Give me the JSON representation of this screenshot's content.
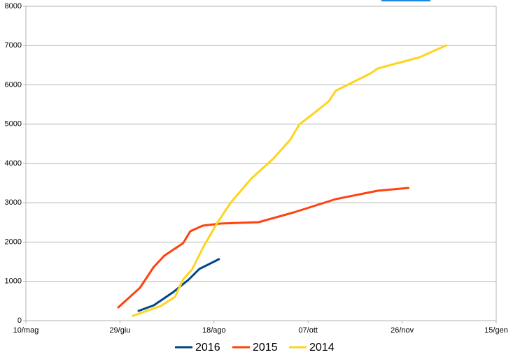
{
  "chart_data": {
    "type": "line",
    "xlim": [
      0,
      250
    ],
    "xticks": [
      {
        "value": 0,
        "label": "10/mag"
      },
      {
        "value": 50,
        "label": "29/giu"
      },
      {
        "value": 100,
        "label": "18/ago"
      },
      {
        "value": 150,
        "label": "07/ott"
      },
      {
        "value": 200,
        "label": "26/nov"
      },
      {
        "value": 250,
        "label": "15/gen"
      }
    ],
    "ylim": [
      0,
      8000
    ],
    "yticks": [
      0,
      1000,
      2000,
      3000,
      4000,
      5000,
      6000,
      7000,
      8000
    ],
    "grid": true,
    "legend": "bottom",
    "series": [
      {
        "name": "2016",
        "color": "#004586",
        "x": [
          59.9,
          68.0,
          78.4,
          83.0,
          86.6,
          92.2,
          102.6
        ],
        "values": [
          249,
          391,
          729,
          907,
          1049,
          1316,
          1564
        ]
      },
      {
        "name": "2015",
        "color": "#ff420e",
        "x": [
          49.1,
          60.6,
          68.0,
          73.6,
          83.6,
          87.4,
          94.0,
          103.3,
          123.8,
          142.4,
          164.7,
          187.0,
          203.3
        ],
        "values": [
          338,
          836,
          1369,
          1653,
          1973,
          2276,
          2418,
          2471,
          2507,
          2756,
          3093,
          3307,
          3378
        ]
      },
      {
        "name": "2014",
        "color": "#ffd320",
        "x": [
          56.9,
          71.7,
          79.2,
          83.6,
          88.5,
          94.0,
          101.5,
          108.9,
          120.0,
          131.2,
          140.5,
          145.4,
          151.7,
          161.0,
          164.7,
          172.1,
          183.3,
          187.0,
          198.1,
          209.3,
          216.7,
          223.4
        ],
        "values": [
          124,
          373,
          604,
          1049,
          1316,
          1849,
          2471,
          3004,
          3627,
          4107,
          4604,
          4996,
          5227,
          5582,
          5849,
          6027,
          6293,
          6418,
          6560,
          6702,
          6862,
          7004
        ]
      }
    ]
  }
}
